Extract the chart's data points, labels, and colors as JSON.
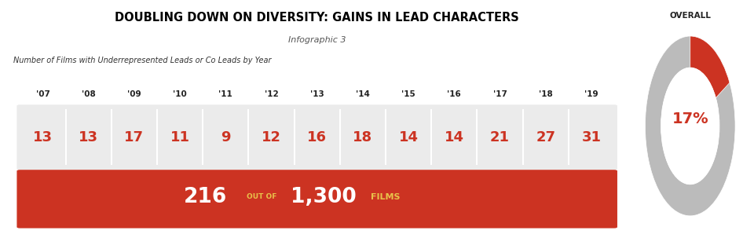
{
  "title": "DOUBLING DOWN ON DIVERSITY: GAINS IN LEAD CHARACTERS",
  "subtitle": "Infographic 3",
  "subtitle2": "Number of Films with Underrepresented Leads or Co Leads by Year",
  "years": [
    "'07",
    "'08",
    "'09",
    "'10",
    "'11",
    "'12",
    "'13",
    "'14",
    "'15",
    "'16",
    "'17",
    "'18",
    "'19"
  ],
  "values": [
    13,
    13,
    17,
    11,
    9,
    12,
    16,
    18,
    14,
    14,
    21,
    27,
    31
  ],
  "overall_label": "OVERALL",
  "total_films": "216",
  "out_of_label": "OUT OF",
  "out_of_value": "1,300",
  "films_label": "FILMS",
  "percentage": 17,
  "red_color": "#CC3322",
  "yellow_color": "#E8C14A",
  "gray_bg": "#EBEBEB",
  "dark_red_banner": "#CC3322",
  "donut_gray": "#BBBBBB",
  "donut_red": "#CC3322",
  "bg_color": "#FFFFFF"
}
